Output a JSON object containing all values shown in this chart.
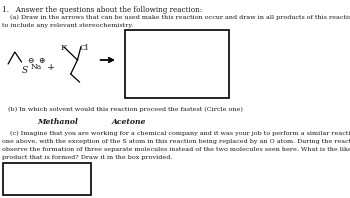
{
  "title_text": "1.   Answer the questions about the following reaction:",
  "part_a_line1": "    (a) Draw in the arrows that can be used make this reaction occur and draw in all products of this reaction. Be sure",
  "part_a_line2": "to include any relevant stereochemistry.",
  "part_b_text": "(b) In which solvent would this reaction proceed the fastest (Circle one)",
  "methanol_text": "Methanol",
  "acetone_text": "Acetone",
  "part_c_line1": "    (c) Imagine that you are working for a chemical company and it was your job to perform a similar reaction to the",
  "part_c_line2": "one above, with the exception of the S atom in this reaction being replaced by an O atom. During the reaction, you",
  "part_c_line3": "observe the formation of three separate molecules instead of the two molecules seen here. What is the likeliest other",
  "part_c_line4": "product that is formed? Draw it in the box provided.",
  "bg_color": "#ffffff",
  "text_color": "#1a1a1a",
  "font_size_title": 5.2,
  "font_size_body": 4.6,
  "font_size_bold": 5.5
}
